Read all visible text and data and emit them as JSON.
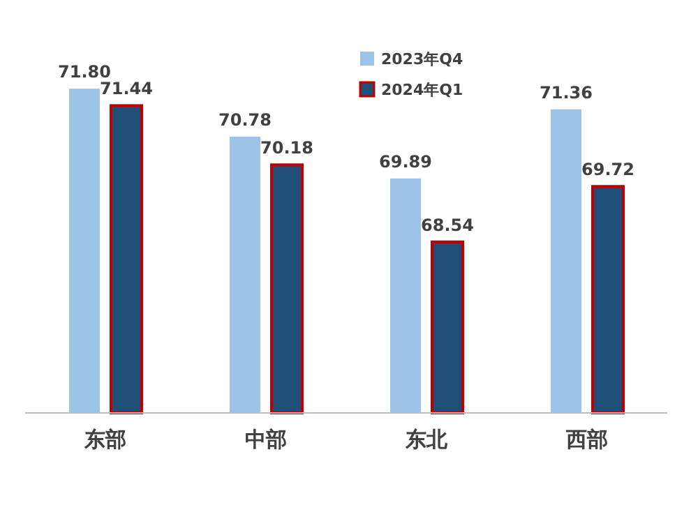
{
  "chart_data": {
    "type": "bar",
    "categories": [
      "东部",
      "中部",
      "东北",
      "西部"
    ],
    "series": [
      {
        "name": "2023年Q4",
        "color": "#9dc3e6",
        "values": [
          71.8,
          70.78,
          69.89,
          71.36
        ],
        "value_labels": [
          "71.80",
          "70.78",
          "69.89",
          "71.36"
        ]
      },
      {
        "name": "2024年Q1",
        "color": "#1f4e79",
        "values": [
          71.44,
          70.18,
          68.54,
          69.72
        ],
        "value_labels": [
          "71.44",
          "70.18",
          "68.54",
          "69.72"
        ]
      }
    ],
    "ylim": [
      64.9,
      72.5
    ],
    "legend": "top",
    "grid": false
  }
}
